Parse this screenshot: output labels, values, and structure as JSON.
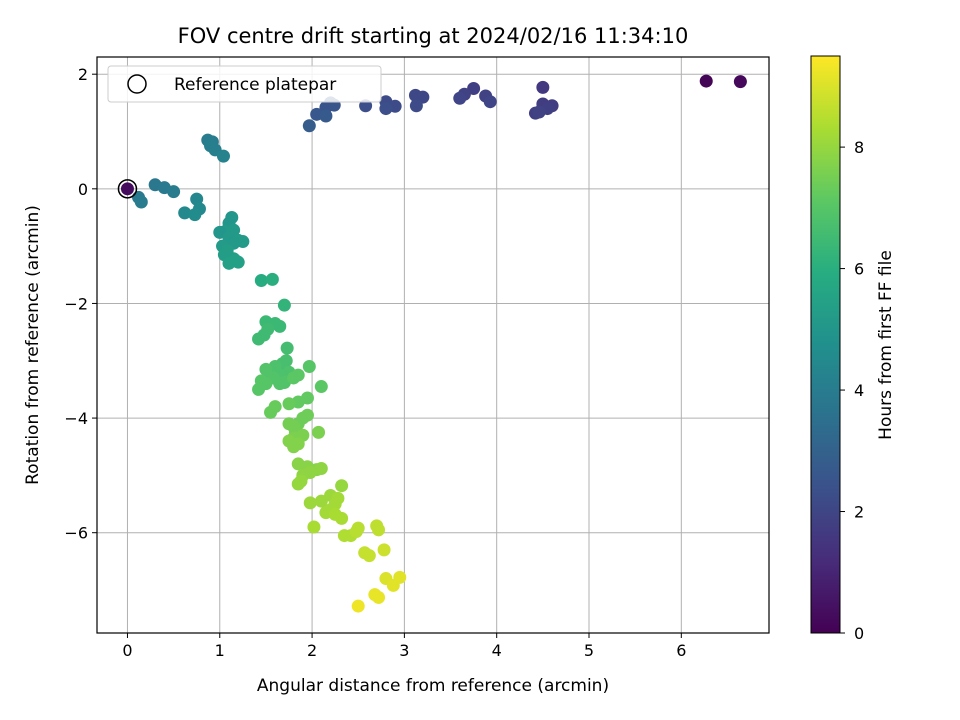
{
  "chart_data": {
    "type": "scatter",
    "title": "FOV centre drift starting at 2024/02/16 11:34:10",
    "xlabel": "Angular distance from reference (arcmin)",
    "ylabel": "Rotation from reference (arcmin)",
    "colorbar_label": "Hours from first FF file",
    "xlim": [
      -0.33,
      6.95
    ],
    "ylim": [
      -7.75,
      2.3
    ],
    "clim": [
      0,
      9.5
    ],
    "x_ticks": [
      0,
      1,
      2,
      3,
      4,
      5,
      6
    ],
    "y_ticks": [
      -6,
      -4,
      -2,
      0,
      2
    ],
    "colorbar_ticks": [
      0,
      2,
      4,
      6,
      8
    ],
    "colormap": "viridis",
    "grid": true,
    "legend": {
      "placement": "upper-left",
      "entries": [
        "Reference platepar"
      ]
    },
    "reference_point": {
      "x": 0,
      "y": 0
    },
    "points": [
      [
        6.27,
        1.88,
        0.1
      ],
      [
        6.64,
        1.87,
        0.2
      ],
      [
        0.0,
        0.0,
        0.3
      ],
      [
        4.5,
        1.77,
        1.6
      ],
      [
        3.75,
        1.75,
        1.8
      ],
      [
        3.65,
        1.65,
        1.9
      ],
      [
        3.6,
        1.58,
        2.0
      ],
      [
        3.88,
        1.62,
        1.9
      ],
      [
        3.93,
        1.52,
        2.0
      ],
      [
        4.5,
        1.48,
        1.7
      ],
      [
        4.6,
        1.45,
        1.7
      ],
      [
        4.55,
        1.4,
        1.8
      ],
      [
        4.42,
        1.32,
        1.8
      ],
      [
        4.46,
        1.34,
        1.9
      ],
      [
        3.12,
        1.63,
        2.1
      ],
      [
        3.2,
        1.6,
        2.1
      ],
      [
        3.13,
        1.45,
        2.2
      ],
      [
        2.8,
        1.52,
        2.2
      ],
      [
        2.9,
        1.44,
        2.2
      ],
      [
        2.8,
        1.4,
        2.3
      ],
      [
        2.58,
        1.45,
        2.3
      ],
      [
        2.2,
        1.5,
        2.4
      ],
      [
        2.24,
        1.46,
        2.5
      ],
      [
        2.15,
        1.42,
        2.5
      ],
      [
        2.05,
        1.3,
        2.6
      ],
      [
        2.15,
        1.27,
        2.7
      ],
      [
        1.97,
        1.1,
        2.8
      ],
      [
        0.87,
        0.85,
        4.0
      ],
      [
        0.92,
        0.82,
        4.0
      ],
      [
        0.9,
        0.75,
        4.1
      ],
      [
        0.95,
        0.68,
        4.1
      ],
      [
        1.04,
        0.57,
        4.2
      ],
      [
        0.3,
        0.07,
        3.8
      ],
      [
        0.4,
        0.02,
        3.9
      ],
      [
        0.5,
        -0.05,
        4.0
      ],
      [
        0.12,
        -0.15,
        3.9
      ],
      [
        0.15,
        -0.23,
        4.0
      ],
      [
        0.75,
        -0.18,
        4.4
      ],
      [
        0.78,
        -0.35,
        4.5
      ],
      [
        0.62,
        -0.42,
        4.5
      ],
      [
        0.73,
        -0.45,
        4.6
      ],
      [
        1.13,
        -0.5,
        5.0
      ],
      [
        1.1,
        -0.6,
        5.0
      ],
      [
        1.05,
        -0.75,
        5.1
      ],
      [
        1.15,
        -0.72,
        5.1
      ],
      [
        1.0,
        -0.76,
        5.0
      ],
      [
        1.1,
        -0.85,
        5.1
      ],
      [
        1.2,
        -0.9,
        5.2
      ],
      [
        1.25,
        -0.92,
        5.2
      ],
      [
        1.15,
        -0.95,
        5.1
      ],
      [
        1.03,
        -1.0,
        5.2
      ],
      [
        1.08,
        -1.08,
        5.3
      ],
      [
        1.05,
        -1.15,
        5.3
      ],
      [
        1.15,
        -1.22,
        5.3
      ],
      [
        1.1,
        -1.3,
        5.4
      ],
      [
        1.17,
        -1.25,
        5.4
      ],
      [
        1.2,
        -1.28,
        5.4
      ],
      [
        1.45,
        -1.6,
        5.9
      ],
      [
        1.57,
        -1.58,
        6.0
      ],
      [
        1.7,
        -2.03,
        6.2
      ],
      [
        1.5,
        -2.32,
        6.4
      ],
      [
        1.6,
        -2.35,
        6.4
      ],
      [
        1.65,
        -2.4,
        6.4
      ],
      [
        1.52,
        -2.45,
        6.5
      ],
      [
        1.48,
        -2.55,
        6.5
      ],
      [
        1.42,
        -2.62,
        6.5
      ],
      [
        1.73,
        -2.78,
        6.6
      ],
      [
        1.72,
        -3.0,
        6.7
      ],
      [
        1.68,
        -3.05,
        6.7
      ],
      [
        1.7,
        -3.15,
        6.7
      ],
      [
        1.75,
        -3.2,
        6.8
      ],
      [
        1.65,
        -3.25,
        6.8
      ],
      [
        1.6,
        -3.1,
        6.8
      ],
      [
        1.55,
        -3.2,
        6.8
      ],
      [
        1.5,
        -3.15,
        6.9
      ],
      [
        1.58,
        -3.3,
        6.9
      ],
      [
        1.7,
        -3.38,
        6.9
      ],
      [
        1.65,
        -3.4,
        6.9
      ],
      [
        1.45,
        -3.35,
        7.0
      ],
      [
        1.42,
        -3.5,
        7.0
      ],
      [
        1.5,
        -3.4,
        7.0
      ],
      [
        1.97,
        -3.1,
        7.0
      ],
      [
        1.8,
        -3.3,
        7.1
      ],
      [
        1.85,
        -3.25,
        7.1
      ],
      [
        2.1,
        -3.45,
        7.1
      ],
      [
        1.95,
        -3.65,
        7.2
      ],
      [
        1.85,
        -3.72,
        7.2
      ],
      [
        1.75,
        -3.75,
        7.3
      ],
      [
        1.6,
        -3.8,
        7.3
      ],
      [
        1.55,
        -3.9,
        7.3
      ],
      [
        1.95,
        -3.95,
        7.4
      ],
      [
        1.9,
        -4.0,
        7.4
      ],
      [
        1.85,
        -4.1,
        7.4
      ],
      [
        1.8,
        -4.15,
        7.5
      ],
      [
        1.75,
        -4.1,
        7.5
      ],
      [
        1.82,
        -4.25,
        7.5
      ],
      [
        2.07,
        -4.25,
        7.6
      ],
      [
        1.9,
        -4.3,
        7.6
      ],
      [
        1.8,
        -4.35,
        7.6
      ],
      [
        1.75,
        -4.4,
        7.7
      ],
      [
        1.85,
        -4.45,
        7.7
      ],
      [
        1.8,
        -4.5,
        7.7
      ],
      [
        1.85,
        -4.8,
        7.8
      ],
      [
        1.95,
        -4.85,
        7.8
      ],
      [
        2.05,
        -4.9,
        7.8
      ],
      [
        2.1,
        -4.88,
        7.9
      ],
      [
        1.98,
        -4.95,
        7.9
      ],
      [
        1.9,
        -5.0,
        7.9
      ],
      [
        1.88,
        -5.1,
        8.0
      ],
      [
        1.85,
        -5.15,
        8.0
      ],
      [
        2.32,
        -5.18,
        8.0
      ],
      [
        2.2,
        -5.35,
        8.1
      ],
      [
        2.1,
        -5.45,
        8.1
      ],
      [
        1.98,
        -5.48,
        8.1
      ],
      [
        2.28,
        -5.4,
        8.2
      ],
      [
        2.25,
        -5.5,
        8.2
      ],
      [
        2.2,
        -5.6,
        8.2
      ],
      [
        2.15,
        -5.65,
        8.2
      ],
      [
        2.25,
        -5.68,
        8.3
      ],
      [
        2.32,
        -5.75,
        8.3
      ],
      [
        2.02,
        -5.9,
        8.3
      ],
      [
        2.35,
        -6.05,
        8.4
      ],
      [
        2.42,
        -6.05,
        8.4
      ],
      [
        2.48,
        -5.98,
        8.5
      ],
      [
        2.5,
        -5.92,
        8.5
      ],
      [
        2.7,
        -5.88,
        8.6
      ],
      [
        2.72,
        -5.95,
        8.6
      ],
      [
        2.57,
        -6.35,
        8.7
      ],
      [
        2.62,
        -6.4,
        8.7
      ],
      [
        2.78,
        -6.3,
        8.8
      ],
      [
        2.8,
        -6.8,
        9.0
      ],
      [
        2.88,
        -6.92,
        9.1
      ],
      [
        2.95,
        -6.78,
        9.1
      ],
      [
        2.68,
        -7.08,
        9.2
      ],
      [
        2.72,
        -7.13,
        9.2
      ],
      [
        2.5,
        -7.28,
        9.3
      ]
    ]
  }
}
